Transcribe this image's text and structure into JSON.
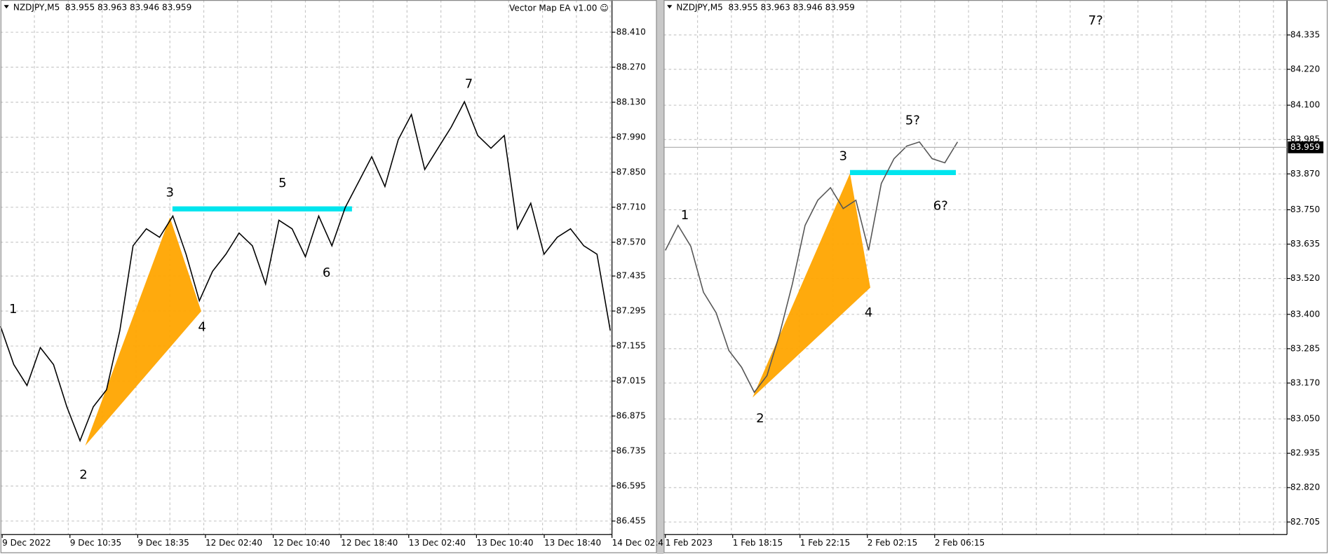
{
  "chart_data": [
    {
      "type": "line",
      "title": "NZDJPY,M5  83.955 83.963 83.946 83.959",
      "watermark": "Vector Map EA v1.00 ☺",
      "color": "#000000",
      "values": [
        87.234,
        87.081,
        86.997,
        87.149,
        87.081,
        86.912,
        86.776,
        86.912,
        86.98,
        87.217,
        87.556,
        87.624,
        87.59,
        87.675,
        87.522,
        87.336,
        87.454,
        87.522,
        87.607,
        87.556,
        87.403,
        87.658,
        87.624,
        87.512,
        87.675,
        87.556,
        87.709,
        87.81,
        87.912,
        87.793,
        87.98,
        88.081,
        87.861,
        87.946,
        88.031,
        88.132,
        87.997,
        87.946,
        87.997,
        87.624,
        87.726,
        87.522,
        87.59,
        87.624,
        87.556,
        87.522,
        87.217
      ],
      "ylim": [
        86.401,
        88.539
      ],
      "yticks": [
        {
          "value": 88.41,
          "label": "88.410"
        },
        {
          "value": 88.27,
          "label": "88.270"
        },
        {
          "value": 88.13,
          "label": "88.130"
        },
        {
          "value": 87.99,
          "label": "87.990"
        },
        {
          "value": 87.85,
          "label": "87.850"
        },
        {
          "value": 87.71,
          "label": "87.710"
        },
        {
          "value": 87.57,
          "label": "87.570"
        },
        {
          "value": 87.435,
          "label": "87.435"
        },
        {
          "value": 87.295,
          "label": "87.295"
        },
        {
          "value": 87.155,
          "label": "87.155"
        },
        {
          "value": 87.015,
          "label": "87.015"
        },
        {
          "value": 86.875,
          "label": "86.875"
        },
        {
          "value": 86.735,
          "label": "86.735"
        },
        {
          "value": 86.595,
          "label": "86.595"
        },
        {
          "value": 86.455,
          "label": "86.455"
        }
      ],
      "x_labels": [
        "9 Dec 2022",
        "9 Dec 10:35",
        "9 Dec 18:35",
        "12 Dec 02:40",
        "12 Dec 10:40",
        "12 Dec 18:40",
        "13 Dec 02:40",
        "13 Dec 10:40",
        "13 Dec 18:40",
        "14 Dec 02:4"
      ],
      "annotations": [
        "1",
        "2",
        "3",
        "4",
        "5",
        "6",
        "7"
      ]
    },
    {
      "type": "line",
      "title": "NZDJPY,M5  83.955 83.963 83.946 83.959",
      "color": "#555555",
      "values": [
        83.614,
        83.698,
        83.628,
        83.474,
        83.405,
        83.279,
        83.223,
        83.139,
        83.195,
        83.335,
        83.502,
        83.698,
        83.782,
        83.824,
        83.754,
        83.782,
        83.614,
        83.838,
        83.921,
        83.963,
        83.977,
        83.921,
        83.907,
        83.977
      ],
      "ylim": [
        82.663,
        84.452
      ],
      "yticks": [
        {
          "value": 84.335,
          "label": "84.335"
        },
        {
          "value": 84.22,
          "label": "84.220"
        },
        {
          "value": 84.1,
          "label": "84.100"
        },
        {
          "value": 83.985,
          "label": "83.985"
        },
        {
          "value": 83.87,
          "label": "83.870"
        },
        {
          "value": 83.75,
          "label": "83.750"
        },
        {
          "value": 83.635,
          "label": "83.635"
        },
        {
          "value": 83.52,
          "label": "83.520"
        },
        {
          "value": 83.4,
          "label": "83.400"
        },
        {
          "value": 83.285,
          "label": "83.285"
        },
        {
          "value": 83.17,
          "label": "83.170"
        },
        {
          "value": 83.05,
          "label": "83.050"
        },
        {
          "value": 82.935,
          "label": "82.935"
        },
        {
          "value": 82.82,
          "label": "82.820"
        },
        {
          "value": 82.705,
          "label": "82.705"
        }
      ],
      "current_price": {
        "value": 83.959,
        "label": "83.959"
      },
      "x_labels": [
        "1 Feb 2023",
        "1 Feb 18:15",
        "1 Feb 22:15",
        "2 Feb 02:15",
        "2 Feb 06:15"
      ],
      "annotations": [
        "1",
        "2",
        "3",
        "4",
        "5?",
        "6?",
        "7?"
      ]
    }
  ]
}
